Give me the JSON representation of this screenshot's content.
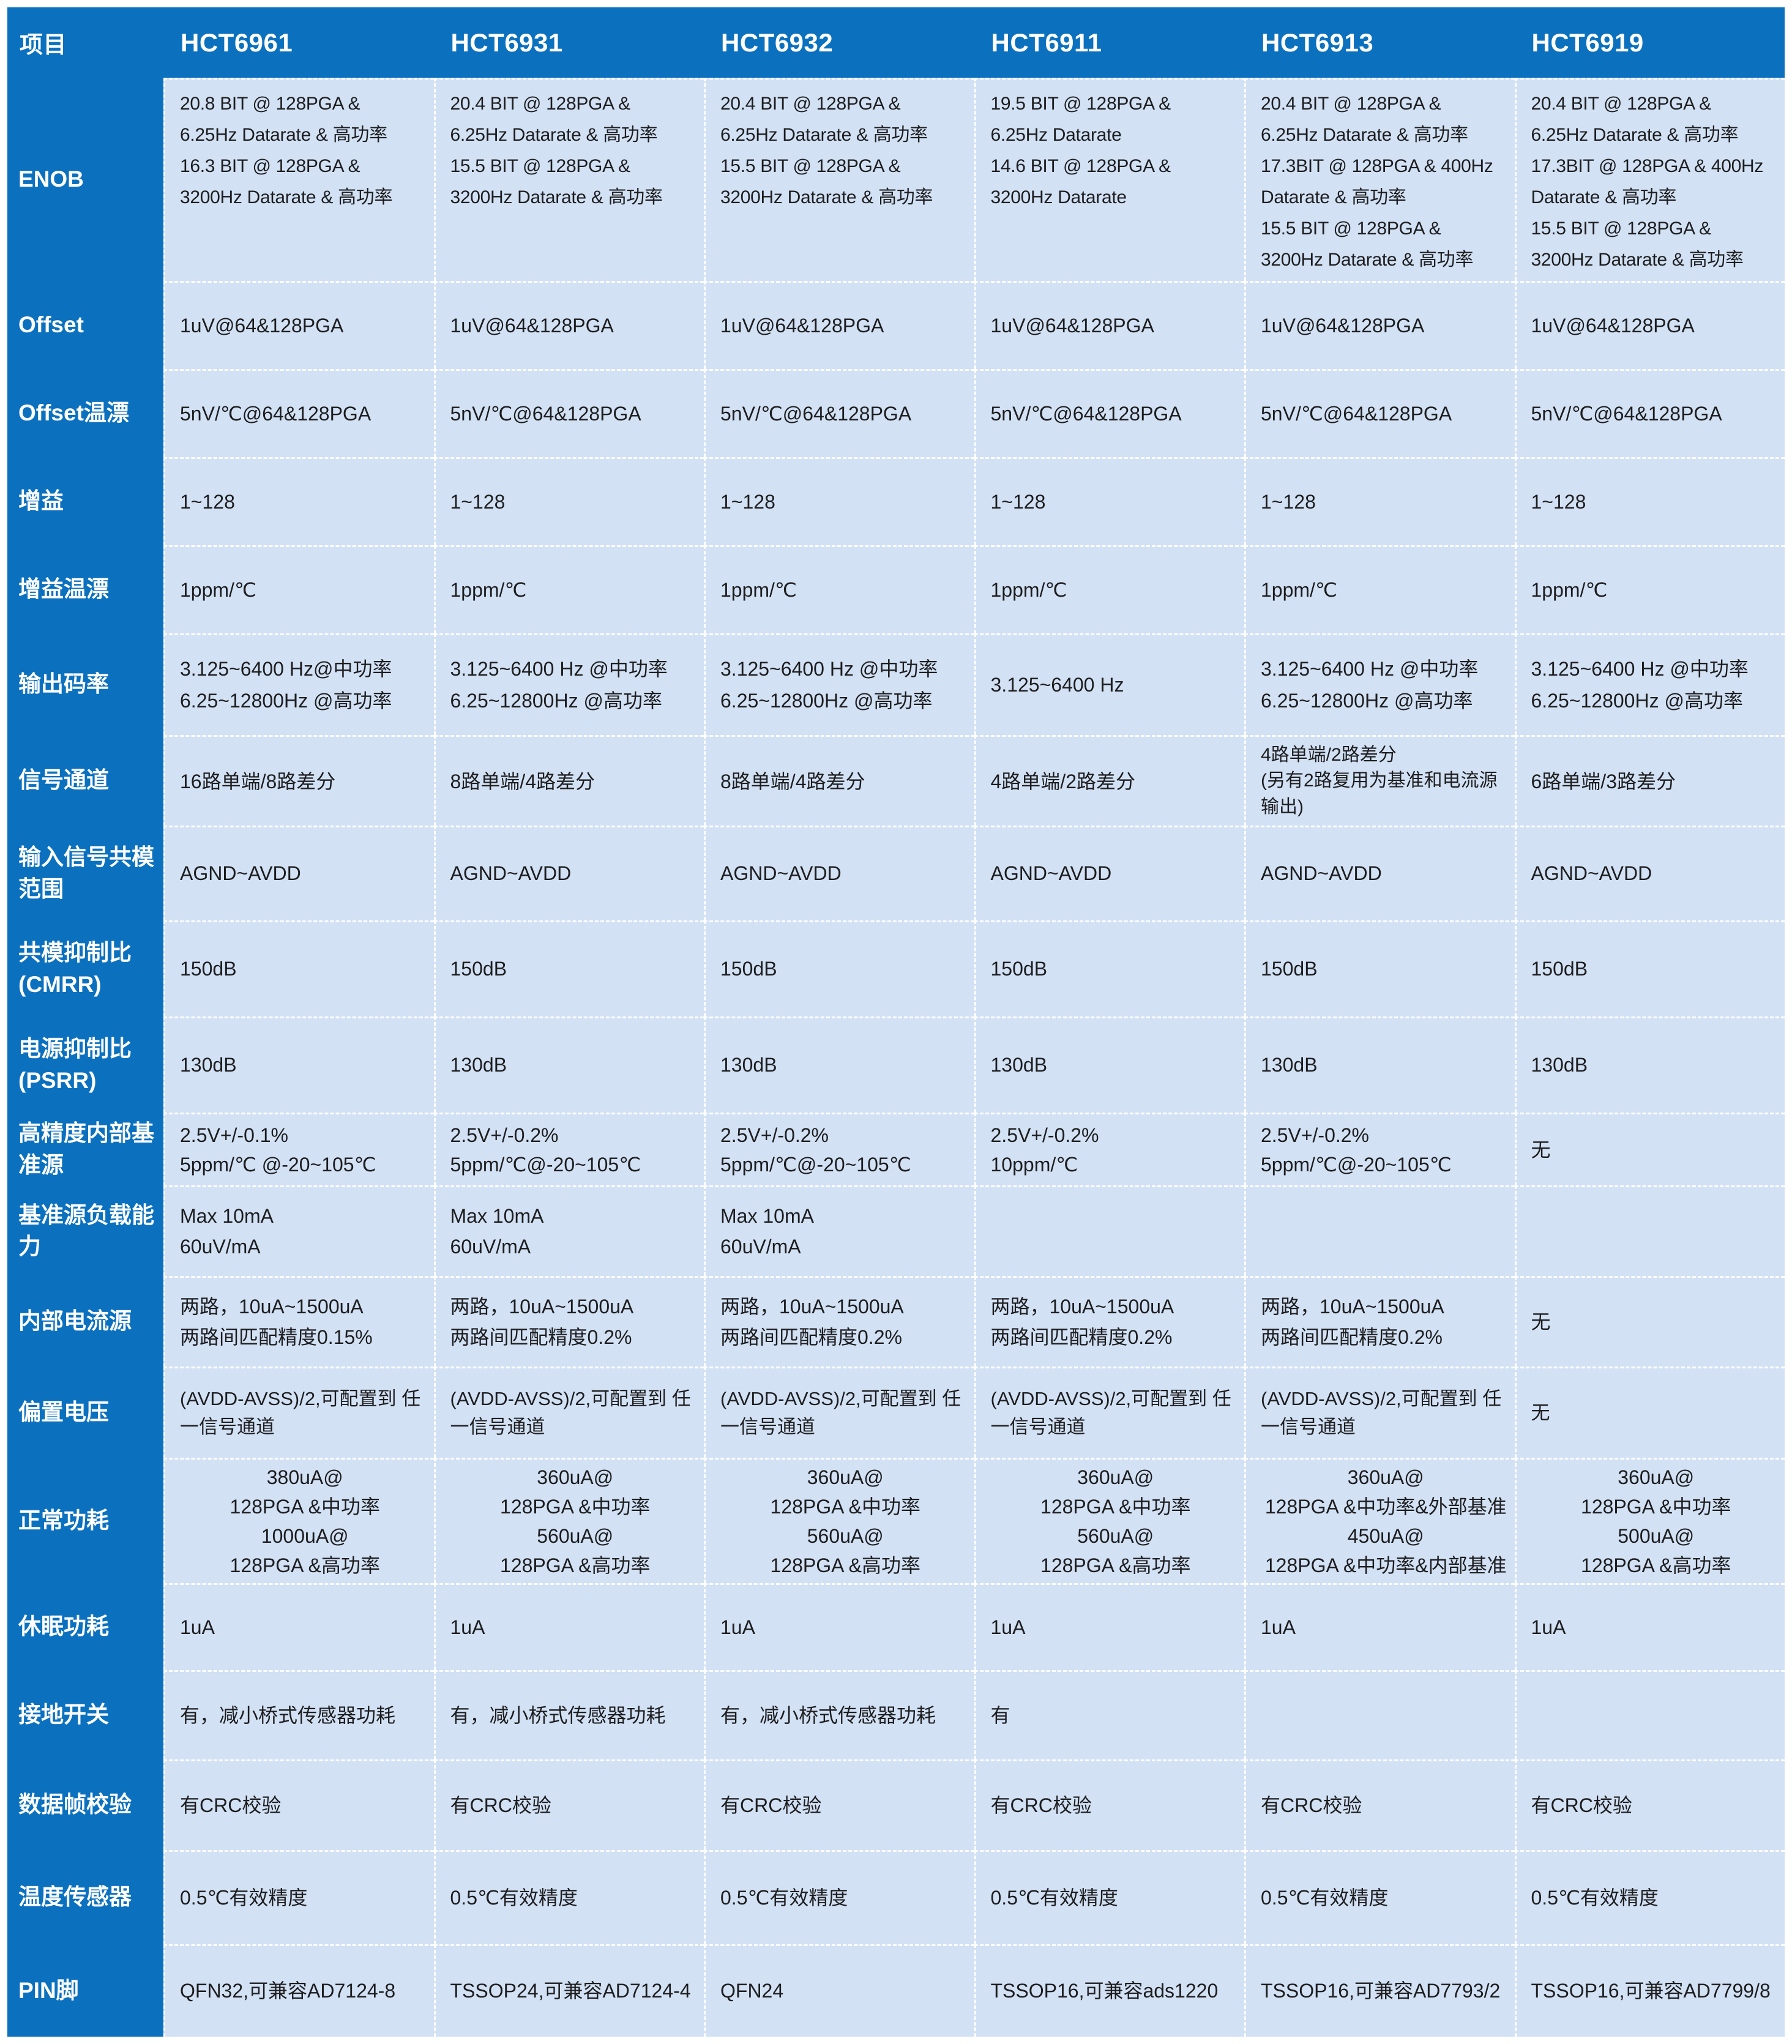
{
  "colors": {
    "header_blue": "#0b71bf",
    "cell_background": "#d2e1f4",
    "separator": "#ffffff",
    "cell_text": "#1d1d1f",
    "header_text": "#ffffff"
  },
  "header": {
    "item_label": "项目",
    "products": [
      "HCT6961",
      "HCT6931",
      "HCT6932",
      "HCT6911",
      "HCT6913",
      "HCT6919"
    ]
  },
  "rows": [
    {
      "key": "enob",
      "label": "ENOB",
      "cells": [
        "20.8 BIT @ 128PGA &\n6.25Hz Datarate & 高功率\n16.3 BIT @ 128PGA &\n3200Hz Datarate & 高功率",
        "20.4 BIT @ 128PGA &\n6.25Hz Datarate & 高功率\n15.5 BIT @ 128PGA &\n3200Hz Datarate & 高功率",
        "20.4 BIT @ 128PGA &\n6.25Hz Datarate & 高功率\n15.5 BIT @ 128PGA &\n3200Hz Datarate & 高功率",
        "19.5 BIT @ 128PGA &\n6.25Hz Datarate\n14.6 BIT @ 128PGA &\n3200Hz Datarate",
        "20.4 BIT @ 128PGA &\n6.25Hz Datarate & 高功率\n17.3BIT @ 128PGA & 400Hz\nDatarate & 高功率\n15.5 BIT @ 128PGA &\n3200Hz Datarate & 高功率",
        "20.4 BIT @ 128PGA &\n6.25Hz Datarate & 高功率\n17.3BIT @ 128PGA & 400Hz\nDatarate & 高功率\n15.5 BIT @ 128PGA &\n3200Hz Datarate & 高功率"
      ]
    },
    {
      "key": "offset",
      "label": "Offset",
      "cells": [
        "1uV@64&128PGA",
        "1uV@64&128PGA",
        "1uV@64&128PGA",
        "1uV@64&128PGA",
        "1uV@64&128PGA",
        "1uV@64&128PGA"
      ]
    },
    {
      "key": "offset_drift",
      "label": "Offset温漂",
      "cells": [
        "5nV/℃@64&128PGA",
        "5nV/℃@64&128PGA",
        "5nV/℃@64&128PGA",
        "5nV/℃@64&128PGA",
        "5nV/℃@64&128PGA",
        "5nV/℃@64&128PGA"
      ]
    },
    {
      "key": "gain",
      "label": "增益",
      "cells": [
        "1~128",
        "1~128",
        "1~128",
        "1~128",
        "1~128",
        "1~128"
      ]
    },
    {
      "key": "gain_drift",
      "label": "增益温漂",
      "cells": [
        "1ppm/℃",
        "1ppm/℃",
        "1ppm/℃",
        "1ppm/℃",
        "1ppm/℃",
        "1ppm/℃"
      ]
    },
    {
      "key": "datarate",
      "label": "输出码率",
      "cells": [
        "3.125~6400 Hz@中功率\n6.25~12800Hz @高功率",
        "3.125~6400 Hz @中功率\n6.25~12800Hz @高功率",
        "3.125~6400 Hz @中功率\n6.25~12800Hz @高功率",
        "3.125~6400 Hz",
        "3.125~6400 Hz @中功率\n6.25~12800Hz @高功率",
        "3.125~6400 Hz @中功率\n6.25~12800Hz @高功率"
      ]
    },
    {
      "key": "channels",
      "label": "信号通道",
      "cells": [
        "16路单端/8路差分",
        "8路单端/4路差分",
        "8路单端/4路差分",
        "4路单端/2路差分",
        "4路单端/2路差分\n(另有2路复用为基准和电流源\n输出)",
        "6路单端/3路差分"
      ]
    },
    {
      "key": "cm_range",
      "label": "输入信号共模范围",
      "cells": [
        "AGND~AVDD",
        "AGND~AVDD",
        "AGND~AVDD",
        "AGND~AVDD",
        "AGND~AVDD",
        "AGND~AVDD"
      ]
    },
    {
      "key": "cmrr",
      "label": "共模抑制比(CMRR)",
      "cells": [
        "150dB",
        "150dB",
        "150dB",
        "150dB",
        "150dB",
        "150dB"
      ]
    },
    {
      "key": "psrr",
      "label": "电源抑制比(PSRR)",
      "cells": [
        "130dB",
        "130dB",
        "130dB",
        "130dB",
        "130dB",
        "130dB"
      ]
    },
    {
      "key": "vref",
      "label": "高精度内部基准源",
      "cells": [
        "2.5V+/-0.1%\n5ppm/℃ @-20~105℃",
        "2.5V+/-0.2%\n5ppm/℃@-20~105℃",
        "2.5V+/-0.2%\n5ppm/℃@-20~105℃",
        "2.5V+/-0.2%\n10ppm/℃",
        "2.5V+/-0.2%\n5ppm/℃@-20~105℃",
        "无"
      ]
    },
    {
      "key": "vref_load",
      "label": "基准源负载能力",
      "cells": [
        "Max 10mA\n60uV/mA",
        "Max 10mA\n60uV/mA",
        "Max 10mA\n60uV/mA",
        "",
        "",
        ""
      ]
    },
    {
      "key": "isrc",
      "label": "内部电流源",
      "cells": [
        "两路，10uA~1500uA\n两路间匹配精度0.15%",
        "两路，10uA~1500uA\n两路间匹配精度0.2%",
        "两路，10uA~1500uA\n两路间匹配精度0.2%",
        "两路，10uA~1500uA\n两路间匹配精度0.2%",
        "两路，10uA~1500uA\n两路间匹配精度0.2%",
        "无"
      ]
    },
    {
      "key": "bias",
      "label": "偏置电压",
      "cells": [
        "(AVDD-AVSS)/2,可配置到 任\n一信号通道",
        "(AVDD-AVSS)/2,可配置到 任\n一信号通道",
        "(AVDD-AVSS)/2,可配置到 任\n一信号通道",
        "(AVDD-AVSS)/2,可配置到 任\n一信号通道",
        "(AVDD-AVSS)/2,可配置到 任\n一信号通道",
        "无"
      ]
    },
    {
      "key": "power",
      "label": "正常功耗",
      "cells": [
        "380uA@\n128PGA &中功率\n1000uA@\n128PGA &高功率",
        "360uA@\n128PGA &中功率\n560uA@\n128PGA &高功率",
        "360uA@\n128PGA &中功率\n560uA@\n128PGA &高功率",
        "360uA@\n128PGA &中功率\n560uA@\n128PGA &高功率",
        "360uA@\n128PGA &中功率&外部基准\n450uA@\n128PGA &中功率&内部基准",
        "360uA@\n128PGA &中功率\n500uA@\n128PGA &高功率"
      ]
    },
    {
      "key": "sleep",
      "label": "休眠功耗",
      "cells": [
        "1uA",
        "1uA",
        "1uA",
        "1uA",
        "1uA",
        "1uA"
      ]
    },
    {
      "key": "gnd_switch",
      "label": "接地开关",
      "cells": [
        "有，减小桥式传感器功耗",
        "有，减小桥式传感器功耗",
        "有，减小桥式传感器功耗",
        "有",
        "",
        ""
      ]
    },
    {
      "key": "crc_check",
      "label": "数据帧校验",
      "cells": [
        "有CRC校验",
        "有CRC校验",
        "有CRC校验",
        "有CRC校验",
        "有CRC校验",
        "有CRC校验"
      ]
    },
    {
      "key": "temp_sensor",
      "label": "温度传感器",
      "cells": [
        "0.5℃有效精度",
        "0.5℃有效精度",
        "0.5℃有效精度",
        "0.5℃有效精度",
        "0.5℃有效精度",
        "0.5℃有效精度"
      ]
    },
    {
      "key": "pin",
      "label": "PIN脚",
      "cells": [
        "QFN32,可兼容AD7124-8",
        "TSSOP24,可兼容AD7124-4",
        "QFN24",
        "TSSOP16,可兼容ads1220",
        "TSSOP16,可兼容AD7793/2",
        "TSSOP16,可兼容AD7799/8"
      ]
    }
  ]
}
